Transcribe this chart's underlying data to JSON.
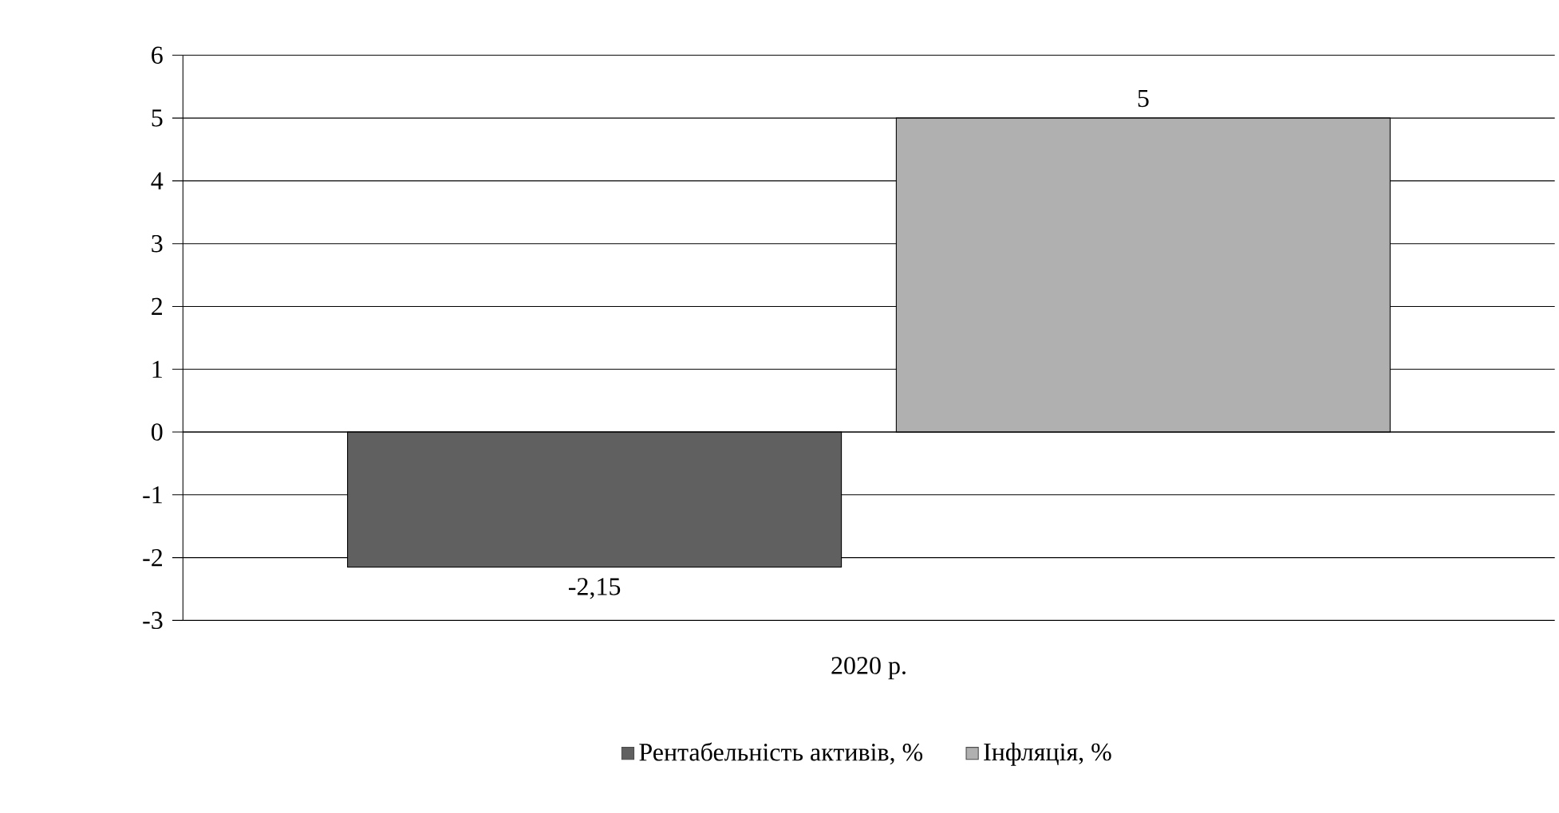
{
  "chart_data": {
    "type": "bar",
    "categories": [
      "2020 р."
    ],
    "series": [
      {
        "name": "Рентабельність активів, %",
        "color": "#606060",
        "values": [
          -2.15
        ],
        "value_labels": [
          "-2,15"
        ]
      },
      {
        "name": "Інфляція, %",
        "color": "#b0b0b0",
        "values": [
          5
        ],
        "value_labels": [
          "5"
        ]
      }
    ],
    "ylim": [
      -3,
      6
    ],
    "yticks": [
      -3,
      -2,
      -1,
      0,
      1,
      2,
      3,
      4,
      5,
      6
    ],
    "grid": "y",
    "legend": "bottom"
  }
}
